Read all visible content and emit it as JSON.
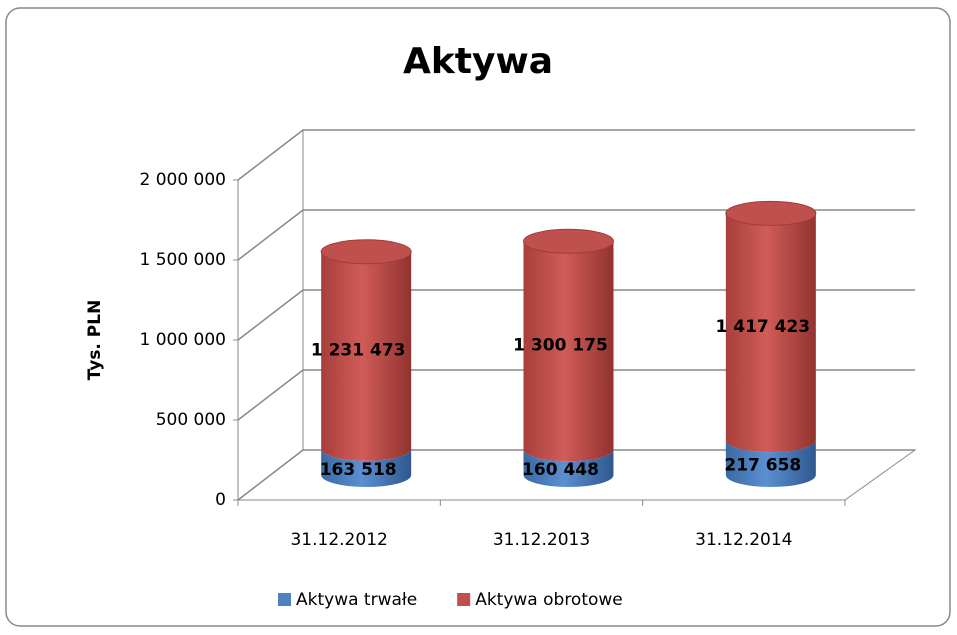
{
  "chart_data": {
    "type": "bar3d_stacked",
    "title": "Aktywa",
    "ylabel": "Tys. PLN",
    "categories": [
      "31.12.2012",
      "31.12.2013",
      "31.12.2014"
    ],
    "series": [
      {
        "name": "Aktywa trwałe",
        "color": "#4f81bd",
        "values": [
          163518,
          160448,
          217658
        ],
        "value_labels": [
          "163 518",
          "160 448",
          "217 658"
        ]
      },
      {
        "name": "Aktywa obrotowe",
        "color": "#c0504d",
        "values": [
          1231473,
          1300175,
          1417423
        ],
        "value_labels": [
          "1 231 473",
          "1 300 175",
          "1 417 423"
        ]
      }
    ],
    "ylim": [
      0,
      2000000
    ],
    "yticks": [
      {
        "value": 0,
        "label": "0"
      },
      {
        "value": 500000,
        "label": "500 000"
      },
      {
        "value": 1000000,
        "label": "1 000 000"
      },
      {
        "value": 1500000,
        "label": "1 500 000"
      },
      {
        "value": 2000000,
        "label": "2 000 000"
      }
    ],
    "grid": true,
    "legend": "bottom"
  }
}
